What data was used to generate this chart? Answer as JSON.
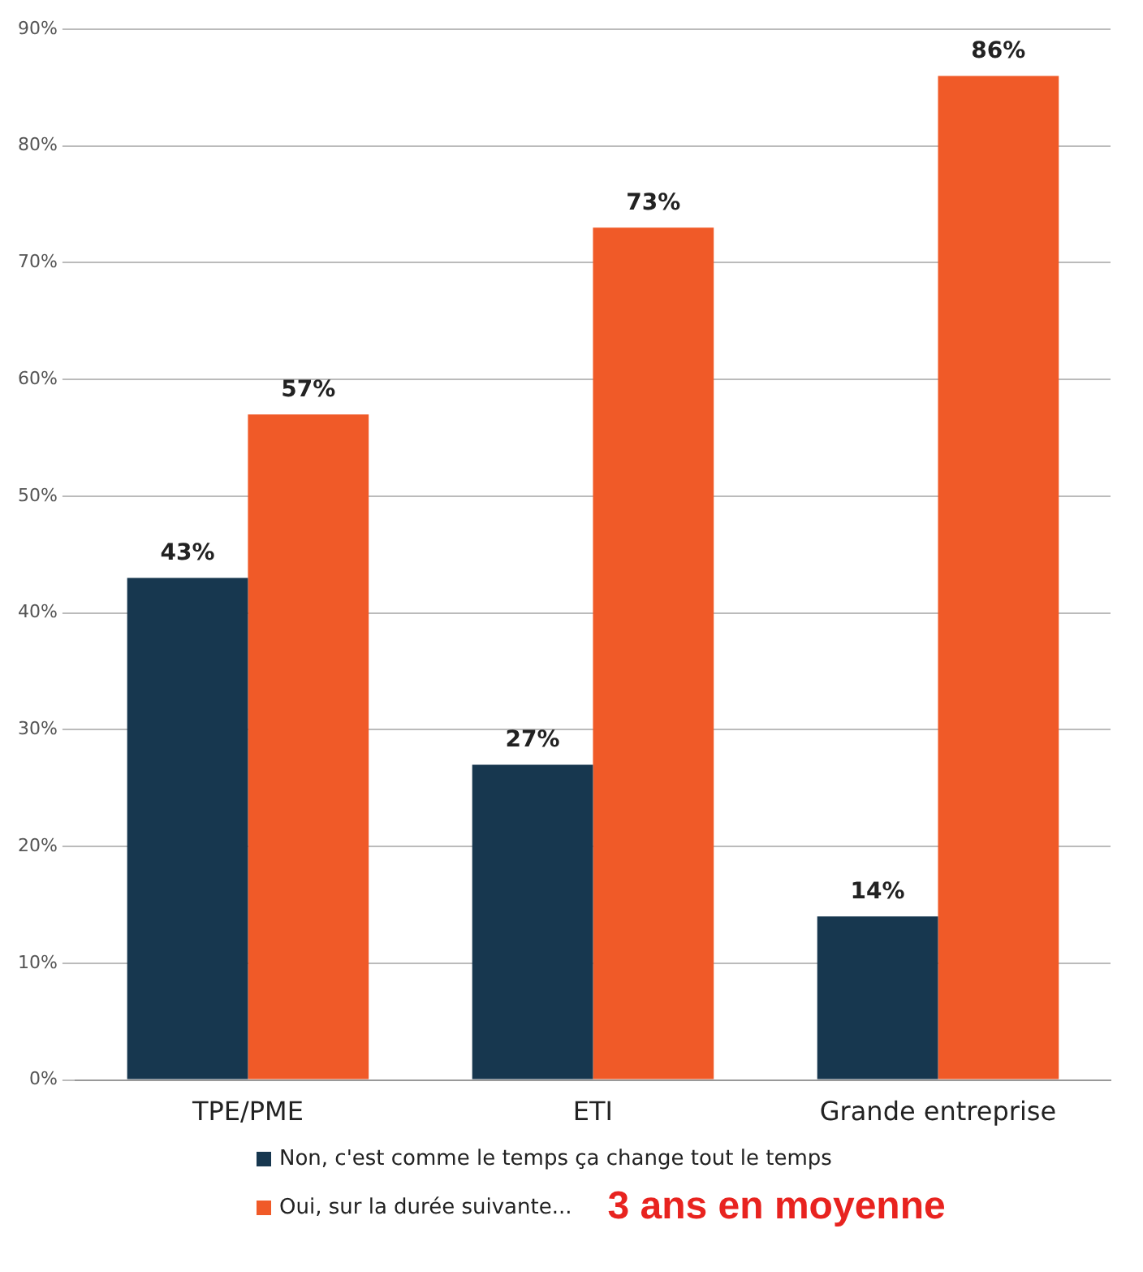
{
  "chart_data": {
    "type": "bar",
    "categories": [
      "TPE/PME",
      "ETI",
      "Grande entreprise"
    ],
    "series": [
      {
        "name": "Non, c'est comme le temps ça change tout le temps",
        "color": "#17374f",
        "values": [
          43,
          27,
          14
        ],
        "value_labels": [
          "43%",
          "27%",
          "14%"
        ]
      },
      {
        "name": "Oui, sur la durée suivante...",
        "color": "#f05a28",
        "values": [
          57,
          73,
          86
        ],
        "value_labels": [
          "57%",
          "73%",
          "86%"
        ]
      }
    ],
    "ylim": [
      0,
      90
    ],
    "yticks": [
      {
        "value": 0,
        "label": "0%"
      },
      {
        "value": 10,
        "label": "10%"
      },
      {
        "value": 20,
        "label": "20%"
      },
      {
        "value": 30,
        "label": "30%"
      },
      {
        "value": 40,
        "label": "40%"
      },
      {
        "value": 50,
        "label": "50%"
      },
      {
        "value": 60,
        "label": "60%"
      },
      {
        "value": 70,
        "label": "70%"
      },
      {
        "value": 80,
        "label": "80%"
      },
      {
        "value": 90,
        "label": "90%"
      }
    ],
    "grid": "y",
    "legend": "bottom",
    "annotations": [
      "3 ans en moyenne"
    ]
  }
}
